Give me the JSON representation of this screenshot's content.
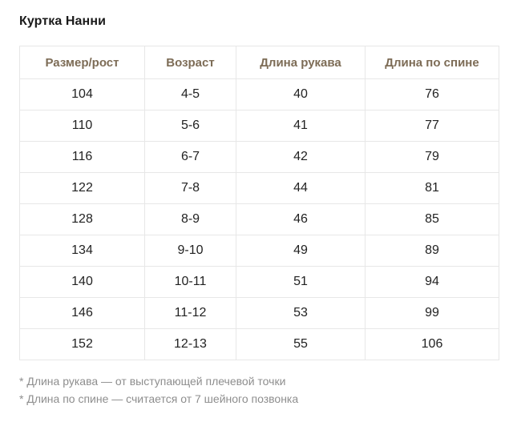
{
  "page": {
    "title": "Куртка Нанни"
  },
  "table": {
    "headers": [
      "Размер/рост",
      "Возраст",
      "Длина рукава",
      "Длина по спине"
    ],
    "rows": [
      [
        "104",
        "4-5",
        "40",
        "76"
      ],
      [
        "110",
        "5-6",
        "41",
        "77"
      ],
      [
        "116",
        "6-7",
        "42",
        "79"
      ],
      [
        "122",
        "7-8",
        "44",
        "81"
      ],
      [
        "128",
        "8-9",
        "46",
        "85"
      ],
      [
        "134",
        "9-10",
        "49",
        "89"
      ],
      [
        "140",
        "10-11",
        "51",
        "94"
      ],
      [
        "146",
        "11-12",
        "53",
        "99"
      ],
      [
        "152",
        "12-13",
        "55",
        "106"
      ]
    ]
  },
  "footnotes": [
    "* Длина рукава — от выступающей плечевой точки",
    "* Длина по спине — считается от 7 шейного позвонка"
  ],
  "colors": {
    "header_text": "#7d6c56",
    "border": "#e7e7e7",
    "cell_text": "#222222",
    "footnote_text": "#8e8e8e"
  },
  "chart_data": {
    "type": "table",
    "title": "Куртка Нанни",
    "columns": [
      "Размер/рост",
      "Возраст",
      "Длина рукава",
      "Длина по спине"
    ],
    "rows": [
      [
        104,
        "4-5",
        40,
        76
      ],
      [
        110,
        "5-6",
        41,
        77
      ],
      [
        116,
        "6-7",
        42,
        79
      ],
      [
        122,
        "7-8",
        44,
        81
      ],
      [
        128,
        "8-9",
        46,
        85
      ],
      [
        134,
        "9-10",
        49,
        89
      ],
      [
        140,
        "10-11",
        51,
        94
      ],
      [
        146,
        "11-12",
        53,
        99
      ],
      [
        152,
        "12-13",
        55,
        106
      ]
    ]
  }
}
